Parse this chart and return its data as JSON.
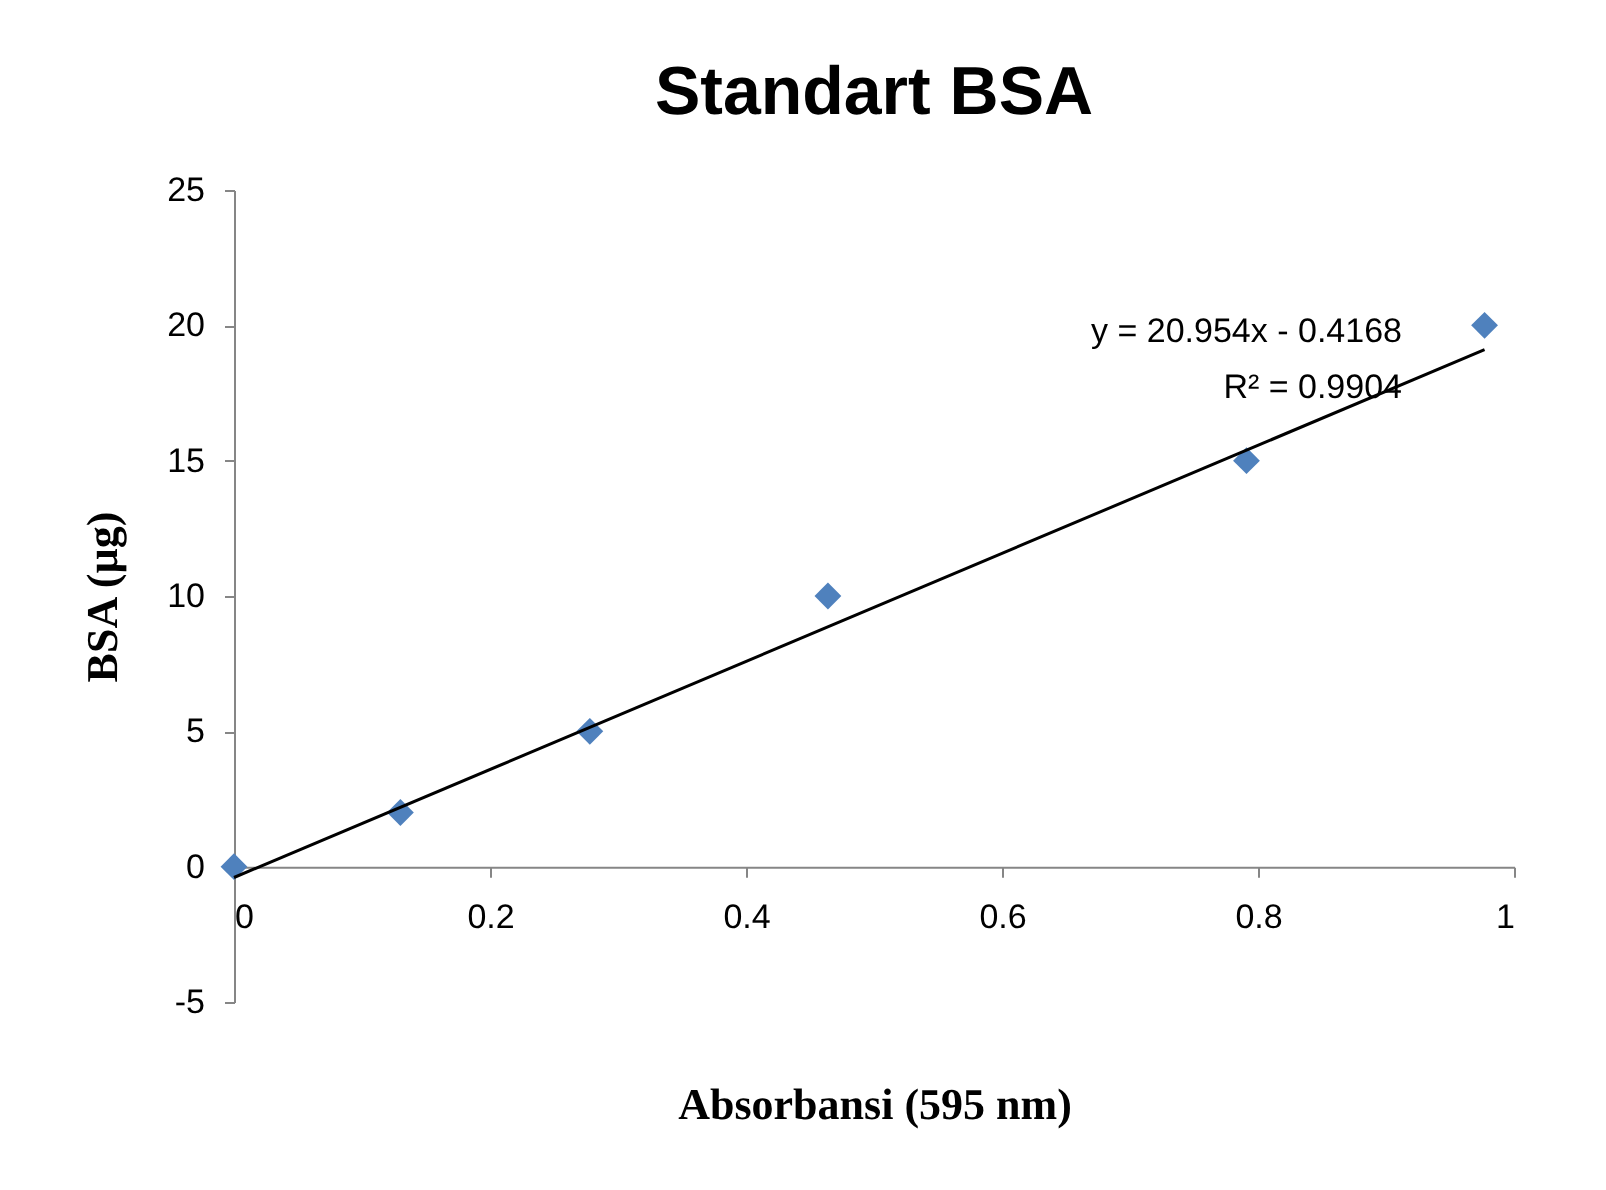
{
  "chart_data": {
    "type": "scatter",
    "title": "Standart BSA",
    "xlabel": "Absorbansi (595 nm)",
    "ylabel": "BSA (µg)",
    "x": [
      0,
      0.13,
      0.278,
      0.464,
      0.791,
      0.977
    ],
    "series": [
      {
        "color": "#4f81bd",
        "values": [
          0,
          2,
          5,
          10,
          15,
          20
        ],
        "marker": "diamond"
      },
      {
        "type": "line",
        "color": "#000000",
        "x": [
          0,
          0.977
        ],
        "values": [
          -0.4,
          19.1
        ],
        "marker": "none",
        "line_style": "solid"
      }
    ],
    "annotations": [
      "y = 20.954x - 0.4168",
      "R² = 0.9904"
    ],
    "xlim": [
      0,
      1
    ],
    "xticks": [
      0,
      0.2,
      0.4,
      0.6,
      0.8,
      1
    ],
    "ylim": [
      -5,
      25
    ],
    "yticks": [
      -5,
      0,
      5,
      10,
      15,
      20,
      25
    ]
  }
}
